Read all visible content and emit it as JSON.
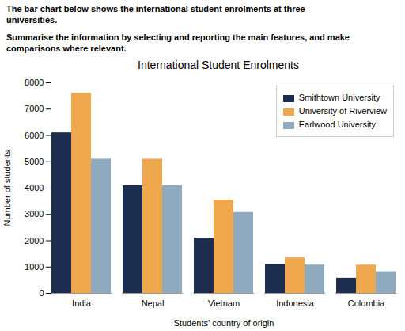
{
  "chart_data": {
    "type": "bar",
    "title": "International Student Enrolments",
    "annotations": [
      "The bar chart below shows the international student enrolments at three",
      "universities.",
      "Summarise the information by selecting and reporting the main features, and make",
      "comparisons where relevant."
    ],
    "xlabel": "Students' country of origin",
    "ylabel": "Number of students",
    "categories": [
      "India",
      "Nepal",
      "Vietnam",
      "Indonesia",
      "Colombia"
    ],
    "series": [
      {
        "name": "Smithtown University",
        "color": "#1c2d50",
        "values": [
          6100,
          4100,
          2100,
          1100,
          575
        ]
      },
      {
        "name": "University of Riverview",
        "color": "#f0a84e",
        "values": [
          7600,
          5100,
          3550,
          1350,
          1075
        ]
      },
      {
        "name": "Earlwood University",
        "color": "#8faabf",
        "values": [
          5100,
          4100,
          3075,
          1075,
          825
        ]
      }
    ],
    "ylim": [
      0,
      8000
    ],
    "yticks": [
      0,
      1000,
      2000,
      3000,
      4000,
      5000,
      6000,
      7000,
      8000
    ],
    "grid": false,
    "legend": "upper right"
  }
}
